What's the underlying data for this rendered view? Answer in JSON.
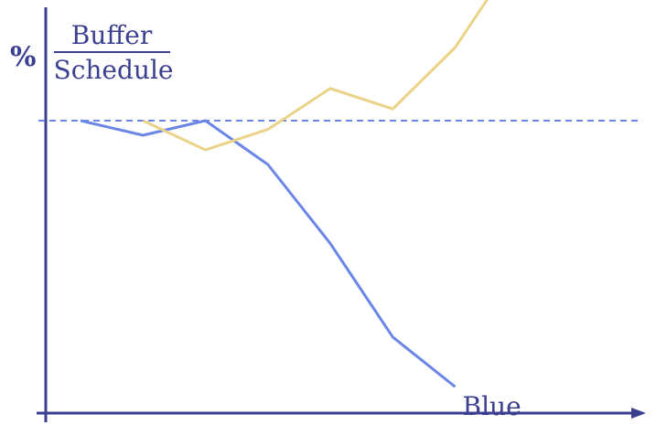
{
  "chart_data": {
    "type": "line",
    "title": "",
    "xlabel": "",
    "ylabel": {
      "prefix": "%",
      "numerator": "Buffer",
      "denominator": "Schedule"
    },
    "x": [
      0,
      1,
      2,
      3,
      4,
      5,
      6,
      7,
      8
    ],
    "xlim": [
      0,
      8
    ],
    "ylim": [
      0,
      180
    ],
    "grid": false,
    "reference_line": {
      "y": 100,
      "style": "dashed",
      "color": "#6b86e6"
    },
    "series": [
      {
        "name": "Blue",
        "color": "#6b86e6",
        "values": [
          100,
          95,
          100,
          85,
          58,
          26,
          9,
          null,
          null
        ],
        "label_position": "end"
      },
      {
        "name": "",
        "color": "#ead388",
        "values": [
          null,
          100,
          90,
          97,
          111,
          104,
          125,
          157,
          null
        ],
        "label_position": "none"
      }
    ],
    "axis_color": "#3b3f8f"
  }
}
